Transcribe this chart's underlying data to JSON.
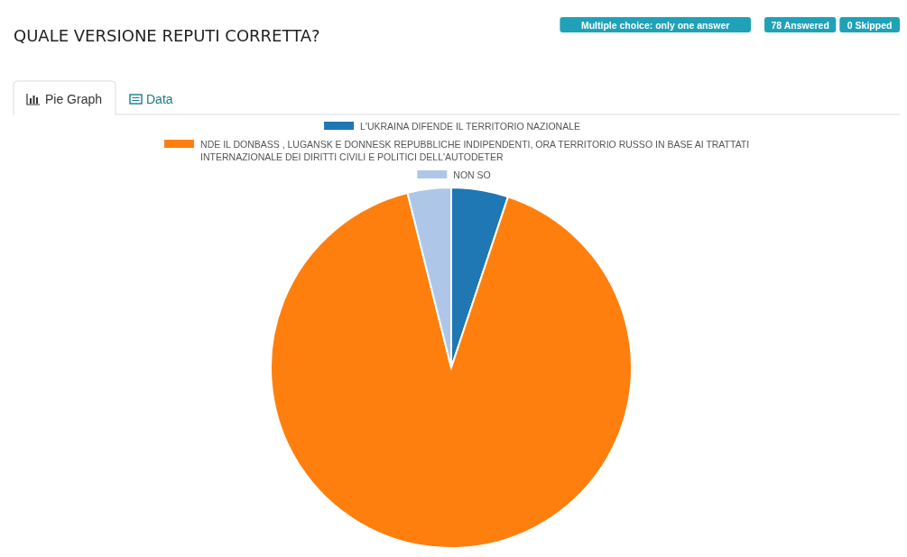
{
  "chart_data": {
    "type": "pie",
    "title": "QUALE VERSIONE REPUTI CORRETTA?",
    "categories": [
      "L'UKRAINA DIFENDE IL TERRITORIO NAZIONALE",
      "NDE IL DONBASS , LUGANSK E DONNESK REPUBBLICHE INDIPENDENTI, ORA TERRITORIO RUSSO IN BASE AI TRATTATI INTERNAZIONALE DEI DIRITTI CIVILI E POLITICI DELL'AUTODETER",
      "NON SO"
    ],
    "values": [
      5.1,
      91.0,
      3.9
    ],
    "colors": [
      "#1f77b4",
      "#ff7f0e",
      "#aec7e8"
    ],
    "legend": "top",
    "annotations": [
      "Multiple choice: only one answer",
      "78 Answered",
      "0 Skipped",
      "Pie Graph",
      "Data"
    ]
  }
}
